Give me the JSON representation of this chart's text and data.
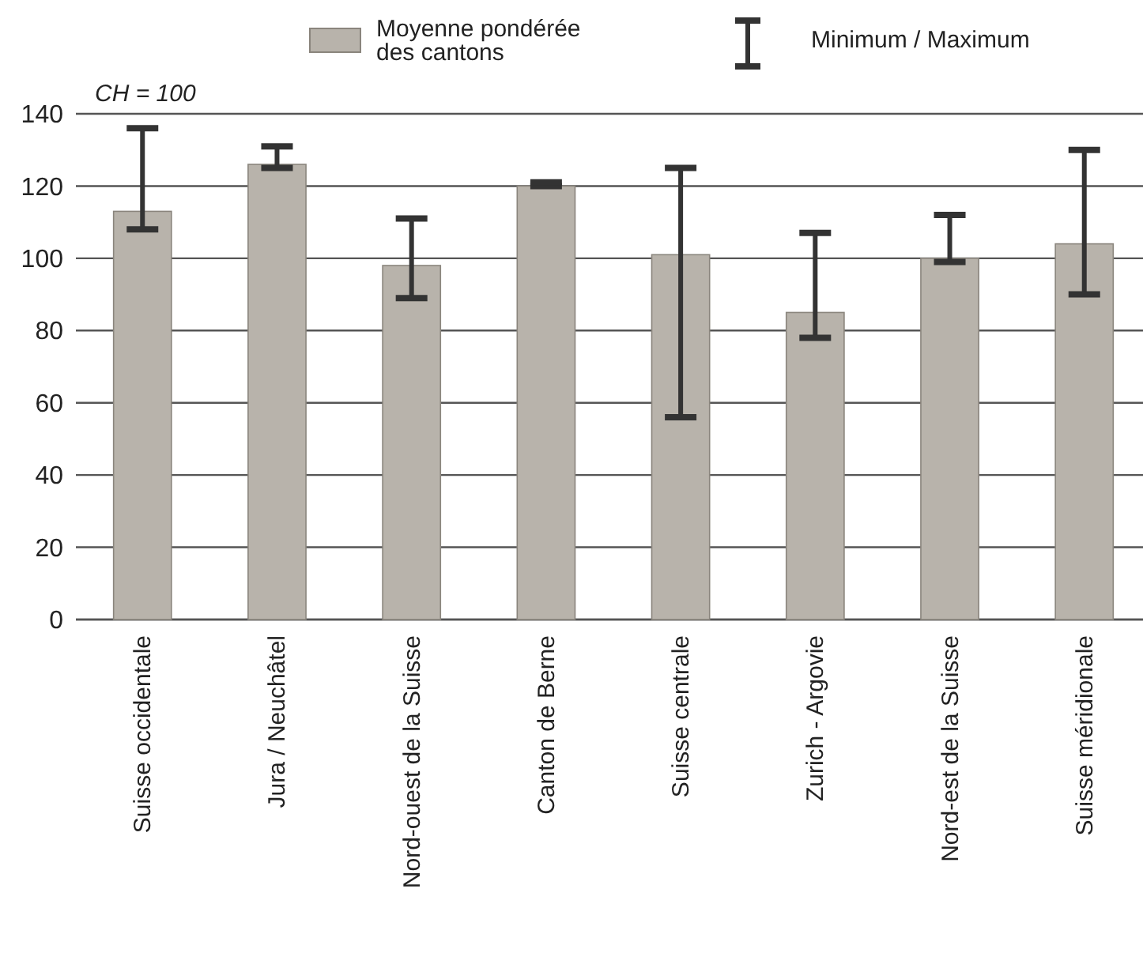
{
  "chart_data": {
    "type": "bar",
    "categories": [
      "Suisse occidentale",
      "Jura / Neuchâtel",
      "Nord-ouest de la Suisse",
      "Canton de Berne",
      "Suisse centrale",
      "Zurich - Argovie",
      "Nord-est de la Suisse",
      "Suisse méridionale"
    ],
    "series": [
      {
        "name": "Moyenne pondérée des cantons",
        "color": "#b8b3ab",
        "values": [
          113,
          126,
          98,
          120,
          101,
          85,
          100,
          104
        ],
        "errors": [
          [
            108,
            136
          ],
          [
            125,
            131
          ],
          [
            89,
            111
          ],
          [
            120,
            121
          ],
          [
            56,
            125
          ],
          [
            78,
            107
          ],
          [
            99,
            112
          ],
          [
            90,
            130
          ]
        ]
      }
    ],
    "ylim": [
      0,
      140
    ],
    "yticks": [
      0,
      20,
      40,
      60,
      80,
      100,
      120,
      140
    ],
    "grid": "y",
    "legend": "top",
    "annotations": [
      "CH = 100",
      "Minimum / Maximum"
    ]
  }
}
